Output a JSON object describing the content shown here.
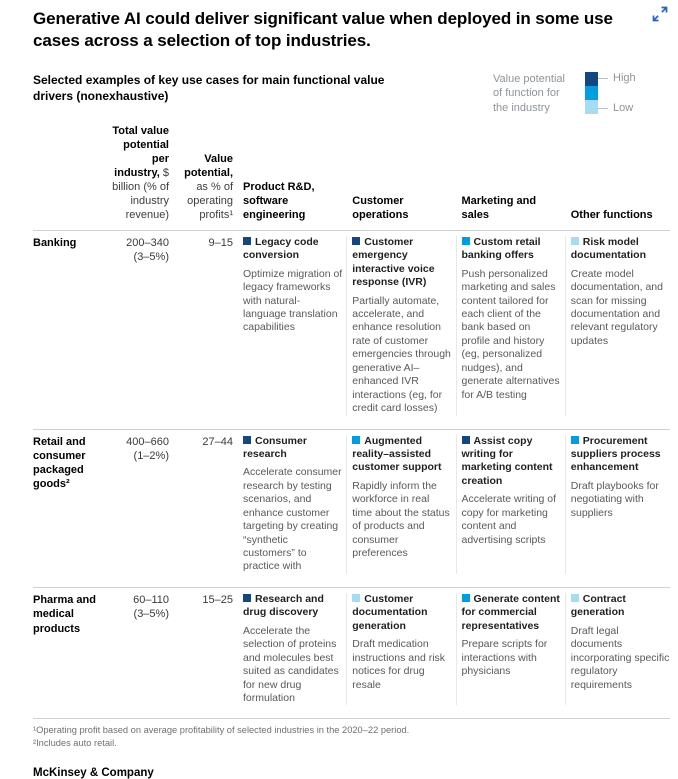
{
  "title": "Generative AI could deliver significant value when deployed in some use cases across a selection of top industries.",
  "subtitle": "Selected examples of key use cases for main functional value drivers (nonexhaustive)",
  "legend": {
    "label": "Value potential of function for the industry",
    "high_label": "High",
    "low_label": "Low",
    "colors": {
      "high": "#14477D",
      "medium": "#009EE0",
      "low": "#A6DCF3"
    }
  },
  "columns": {
    "total_value_bold": "Total value potential per industry,",
    "total_value_rest": " $ billion (% of industry revenue)",
    "value_potential_bold": "Value potential,",
    "value_potential_rest": " as % of operating profits¹",
    "functions": [
      "Product R&D, software engineering",
      "Customer operations",
      "Marketing and sales",
      "Other functions"
    ]
  },
  "rows": [
    {
      "industry": "Banking",
      "total_value": "200–340",
      "total_value_pct": "(3–5%)",
      "value_potential": "9–15",
      "cells": [
        {
          "level": "high",
          "title": "Legacy code conversion",
          "desc": "Optimize migration of legacy frameworks with natural-language translation capabilities"
        },
        {
          "level": "high",
          "title": "Customer emergency interactive voice response (IVR)",
          "desc": "Partially automate, accelerate, and enhance resolution rate of customer emergencies through generative AI–enhanced IVR interactions (eg, for credit card losses)"
        },
        {
          "level": "medium",
          "title": "Custom retail banking offers",
          "desc": "Push personalized marketing and sales content tailored for each client of the bank based on profile and history (eg, personalized nudges), and generate alternatives for A/B testing"
        },
        {
          "level": "low",
          "title": "Risk model documentation",
          "desc": "Create model documentation, and scan for missing documentation and relevant regulatory updates"
        }
      ]
    },
    {
      "industry": "Retail and consumer packaged goods²",
      "total_value": "400–660",
      "total_value_pct": "(1–2%)",
      "value_potential": "27–44",
      "cells": [
        {
          "level": "high",
          "title": "Consumer research",
          "desc": "Accelerate consumer research by testing scenarios, and enhance customer targeting by creating “synthetic customers” to practice with"
        },
        {
          "level": "medium",
          "title": "Augmented reality–assisted customer support",
          "desc": "Rapidly inform the workforce in real time about the status of products and consumer preferences"
        },
        {
          "level": "high",
          "title": "Assist copy writing for marketing content creation",
          "desc": "Accelerate writing of copy for marketing content and advertising scripts"
        },
        {
          "level": "medium",
          "title": "Procurement suppliers process enhancement",
          "desc": "Draft playbooks for negotiating with suppliers"
        }
      ]
    },
    {
      "industry": "Pharma and medical products",
      "total_value": "60–110",
      "total_value_pct": "(3–5%)",
      "value_potential": "15–25",
      "cells": [
        {
          "level": "high",
          "title": "Research and drug discovery",
          "desc": "Accelerate the selection of proteins and molecules best suited as candidates for new drug formulation"
        },
        {
          "level": "low",
          "title": "Customer documentation generation",
          "desc": "Draft medication instructions and risk notices for drug resale"
        },
        {
          "level": "medium",
          "title": "Generate content for commercial representatives",
          "desc": "Prepare scripts for interactions with physicians"
        },
        {
          "level": "low",
          "title": "Contract generation",
          "desc": "Draft legal documents incorporating specific regulatory requirements"
        }
      ]
    }
  ],
  "footnotes": [
    "¹Operating profit based on average profitability of selected industries in the 2020–22 period.",
    "²Includes auto retail."
  ],
  "brand": "McKinsey & Company"
}
